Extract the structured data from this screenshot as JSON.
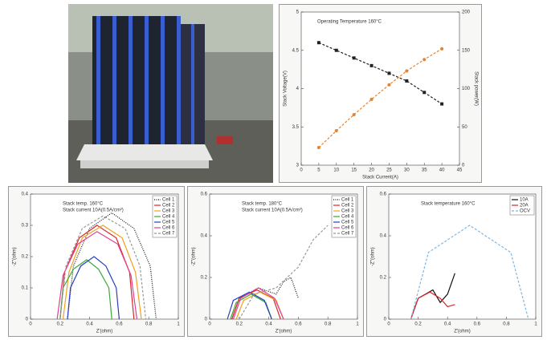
{
  "chart_data": [
    {
      "type": "line",
      "annotations": [
        "Operating Temperature 160°C"
      ],
      "x_label": "Stack Current(A)",
      "y_label": "Stack Voltage(V)",
      "y2_label": "Stack power(W)",
      "x": [
        5,
        10,
        15,
        20,
        25,
        30,
        35,
        40
      ],
      "xlim": [
        0,
        45
      ],
      "xticks": [
        0,
        5,
        10,
        15,
        20,
        25,
        30,
        35,
        40,
        45
      ],
      "ylim": [
        3,
        5
      ],
      "yticks": [
        3,
        3.5,
        4,
        4.5,
        5
      ],
      "y2lim": [
        0,
        200
      ],
      "y2ticks": [
        0,
        50,
        100,
        150,
        200
      ],
      "series": [
        {
          "color": "#222222",
          "marker": "square",
          "style": "dashed",
          "values": [
            4.6,
            4.5,
            4.4,
            4.3,
            4.2,
            4.1,
            3.95,
            3.8
          ]
        },
        {
          "color": "#e8832a",
          "marker": "circle",
          "style": "dashed",
          "axis": "y2",
          "values": [
            23,
            45,
            66,
            86,
            105,
            123,
            138,
            152
          ]
        }
      ]
    },
    {
      "type": "line",
      "annotations": [
        "Stack temp. 160°C",
        "Stack current 10A(0.5A/cm²)"
      ],
      "x_label": "Z'(ohm)",
      "y_label": "-Z''(ohm)",
      "xlim": [
        0,
        1
      ],
      "xticks": [
        0,
        0.2,
        0.4,
        0.6,
        0.8,
        1
      ],
      "ylim": [
        0,
        0.4
      ],
      "yticks": [
        0,
        0.1,
        0.2,
        0.3,
        0.4
      ],
      "legend": "top-right",
      "series": [
        {
          "name": "Cell 1",
          "color": "#111111",
          "style": "dotted",
          "x": [
            0.25,
            0.29,
            0.4,
            0.55,
            0.7,
            0.81,
            0.85
          ],
          "values": [
            0,
            0.17,
            0.29,
            0.34,
            0.29,
            0.17,
            0
          ]
        },
        {
          "name": "Cell 2",
          "color": "#d8262a",
          "style": "solid",
          "x": [
            0.2,
            0.23,
            0.33,
            0.45,
            0.58,
            0.67,
            0.7
          ],
          "values": [
            0,
            0.15,
            0.26,
            0.3,
            0.26,
            0.15,
            0
          ]
        },
        {
          "name": "Cell 3",
          "color": "#f0a020",
          "style": "solid",
          "x": [
            0.22,
            0.26,
            0.35,
            0.49,
            0.62,
            0.71,
            0.75
          ],
          "values": [
            0,
            0.15,
            0.26,
            0.3,
            0.26,
            0.15,
            0
          ]
        },
        {
          "name": "Cell 4",
          "color": "#3aa83a",
          "style": "solid",
          "x": [
            0.2,
            0.22,
            0.29,
            0.38,
            0.46,
            0.53,
            0.55
          ],
          "values": [
            0,
            0.1,
            0.16,
            0.19,
            0.16,
            0.1,
            0
          ]
        },
        {
          "name": "Cell 5",
          "color": "#2a3ec0",
          "style": "solid",
          "x": [
            0.25,
            0.27,
            0.34,
            0.43,
            0.51,
            0.58,
            0.6
          ],
          "values": [
            0,
            0.1,
            0.17,
            0.2,
            0.17,
            0.1,
            0
          ]
        },
        {
          "name": "Cell 6",
          "color": "#e04090",
          "style": "solid",
          "x": [
            0.18,
            0.22,
            0.32,
            0.45,
            0.59,
            0.68,
            0.72
          ],
          "values": [
            0,
            0.14,
            0.24,
            0.28,
            0.24,
            0.14,
            0
          ]
        },
        {
          "name": "Cell 7",
          "color": "#999999",
          "style": "dashed",
          "x": [
            0.2,
            0.24,
            0.35,
            0.49,
            0.64,
            0.74,
            0.78
          ],
          "values": [
            0,
            0.17,
            0.29,
            0.33,
            0.29,
            0.17,
            0
          ]
        }
      ]
    },
    {
      "type": "line",
      "annotations": [
        "Stack temp. 180°C",
        "Stack current 10A(0.5A/cm²)"
      ],
      "x_label": "Z'(ohm)",
      "y_label": "-Z''(ohm)",
      "xlim": [
        0,
        1
      ],
      "xticks": [
        0,
        0.2,
        0.4,
        0.6,
        0.8,
        1
      ],
      "ylim": [
        0,
        0.6
      ],
      "yticks": [
        0,
        0.2,
        0.4,
        0.6
      ],
      "legend": "top-right",
      "series": [
        {
          "name": "Cell 1",
          "color": "#111111",
          "style": "dotted",
          "x": [
            0.15,
            0.2,
            0.33,
            0.45,
            0.5,
            0.55,
            0.6
          ],
          "values": [
            0,
            0.1,
            0.15,
            0.12,
            0.18,
            0.2,
            0.1
          ]
        },
        {
          "name": "Cell 2",
          "color": "#d8262a",
          "style": "solid",
          "x": [
            0.15,
            0.2,
            0.32,
            0.43,
            0.48
          ],
          "values": [
            0,
            0.1,
            0.14,
            0.1,
            0
          ]
        },
        {
          "name": "Cell 3",
          "color": "#f0a020",
          "style": "solid",
          "x": [
            0.18,
            0.23,
            0.34,
            0.45,
            0.5
          ],
          "values": [
            0,
            0.09,
            0.13,
            0.09,
            0
          ]
        },
        {
          "name": "Cell 4",
          "color": "#3aa83a",
          "style": "solid",
          "x": [
            0.14,
            0.18,
            0.28,
            0.38,
            0.42
          ],
          "values": [
            0,
            0.08,
            0.12,
            0.08,
            0
          ]
        },
        {
          "name": "Cell 5",
          "color": "#2a3ec0",
          "style": "solid",
          "x": [
            0.12,
            0.16,
            0.27,
            0.37,
            0.42
          ],
          "values": [
            0,
            0.09,
            0.13,
            0.09,
            0
          ]
        },
        {
          "name": "Cell 6",
          "color": "#e04090",
          "style": "solid",
          "x": [
            0.16,
            0.21,
            0.33,
            0.44,
            0.5
          ],
          "values": [
            0,
            0.1,
            0.15,
            0.1,
            0
          ]
        },
        {
          "name": "Cell 7",
          "color": "#999999",
          "style": "dashed",
          "x": [
            0.2,
            0.3,
            0.45,
            0.6,
            0.7,
            0.8
          ],
          "values": [
            0,
            0.12,
            0.15,
            0.25,
            0.38,
            0.45
          ]
        }
      ]
    },
    {
      "type": "line",
      "annotations": [
        "Stack temperature 160°C"
      ],
      "x_label": "Z'(ohm)",
      "y_label": "-Z''(ohm)",
      "xlim": [
        0,
        1
      ],
      "xticks": [
        0,
        0.2,
        0.4,
        0.6,
        0.8,
        1
      ],
      "ylim": [
        0,
        0.6
      ],
      "yticks": [
        0,
        0.2,
        0.4,
        0.6
      ],
      "legend": "top-right",
      "series": [
        {
          "name": "10A",
          "color": "#111111",
          "style": "solid",
          "x": [
            0.15,
            0.2,
            0.3,
            0.35,
            0.4,
            0.45
          ],
          "values": [
            0,
            0.1,
            0.14,
            0.08,
            0.12,
            0.22
          ]
        },
        {
          "name": "20A",
          "color": "#d8262a",
          "style": "solid",
          "x": [
            0.15,
            0.2,
            0.28,
            0.35,
            0.4,
            0.45
          ],
          "values": [
            0,
            0.1,
            0.13,
            0.1,
            0.06,
            0.07
          ]
        },
        {
          "name": "OCV",
          "color": "#7fb6e0",
          "style": "dashed",
          "x": [
            0.15,
            0.27,
            0.55,
            0.83,
            0.95
          ],
          "values": [
            0,
            0.32,
            0.45,
            0.32,
            0
          ]
        }
      ]
    }
  ]
}
